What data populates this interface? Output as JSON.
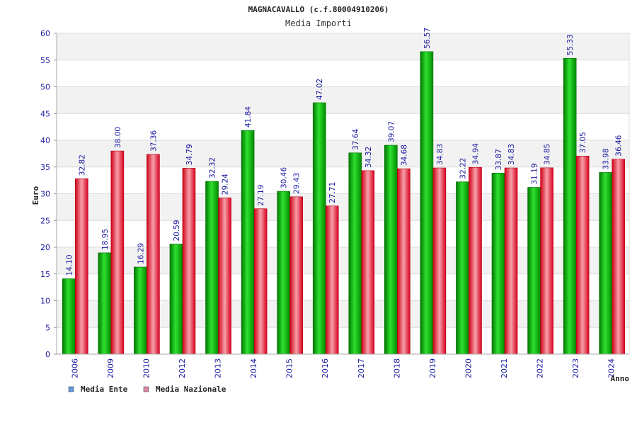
{
  "chart_data": {
    "type": "bar",
    "title": "MAGNACAVALLO (c.f.80004910206)",
    "subtitle": "Media Importi",
    "xlabel": "Anno",
    "ylabel": "Euro",
    "ylim": [
      0,
      60
    ],
    "yticks": [
      0,
      5,
      10,
      15,
      20,
      25,
      30,
      35,
      40,
      45,
      50,
      55,
      60
    ],
    "categories": [
      "2006",
      "2009",
      "2010",
      "2012",
      "2013",
      "2014",
      "2015",
      "2016",
      "2017",
      "2018",
      "2019",
      "2020",
      "2021",
      "2022",
      "2023",
      "2024"
    ],
    "series": [
      {
        "name": "Media Ente",
        "color": "#00b400",
        "legend_color": "#6699dd",
        "values": [
          14.1,
          18.95,
          16.29,
          20.59,
          32.32,
          41.84,
          30.46,
          47.02,
          37.64,
          39.07,
          56.57,
          32.22,
          33.87,
          31.19,
          55.33,
          33.98
        ],
        "labels": [
          "14.10",
          "18.95",
          "16.29",
          "20.59",
          "32.32",
          "41.84",
          "30.46",
          "47.02",
          "37.64",
          "39.07",
          "56.57",
          "32.22",
          "33.87",
          "31.19",
          "55.33",
          "33.98"
        ]
      },
      {
        "name": "Media Nazionale",
        "color": "#e8202a",
        "legend_color": "#dd88aa",
        "values": [
          32.82,
          38.0,
          37.36,
          34.79,
          29.24,
          27.19,
          29.43,
          27.71,
          34.32,
          34.68,
          34.83,
          34.94,
          34.83,
          34.85,
          37.05,
          36.46
        ],
        "labels": [
          "32.82",
          "38.00",
          "37.36",
          "34.79",
          "29.24",
          "27.19",
          "29.43",
          "27.71",
          "34.32",
          "34.68",
          "34.83",
          "34.94",
          "34.83",
          "34.85",
          "37.05",
          "36.46"
        ]
      }
    ],
    "grid": true,
    "legend": "bottom-left"
  }
}
